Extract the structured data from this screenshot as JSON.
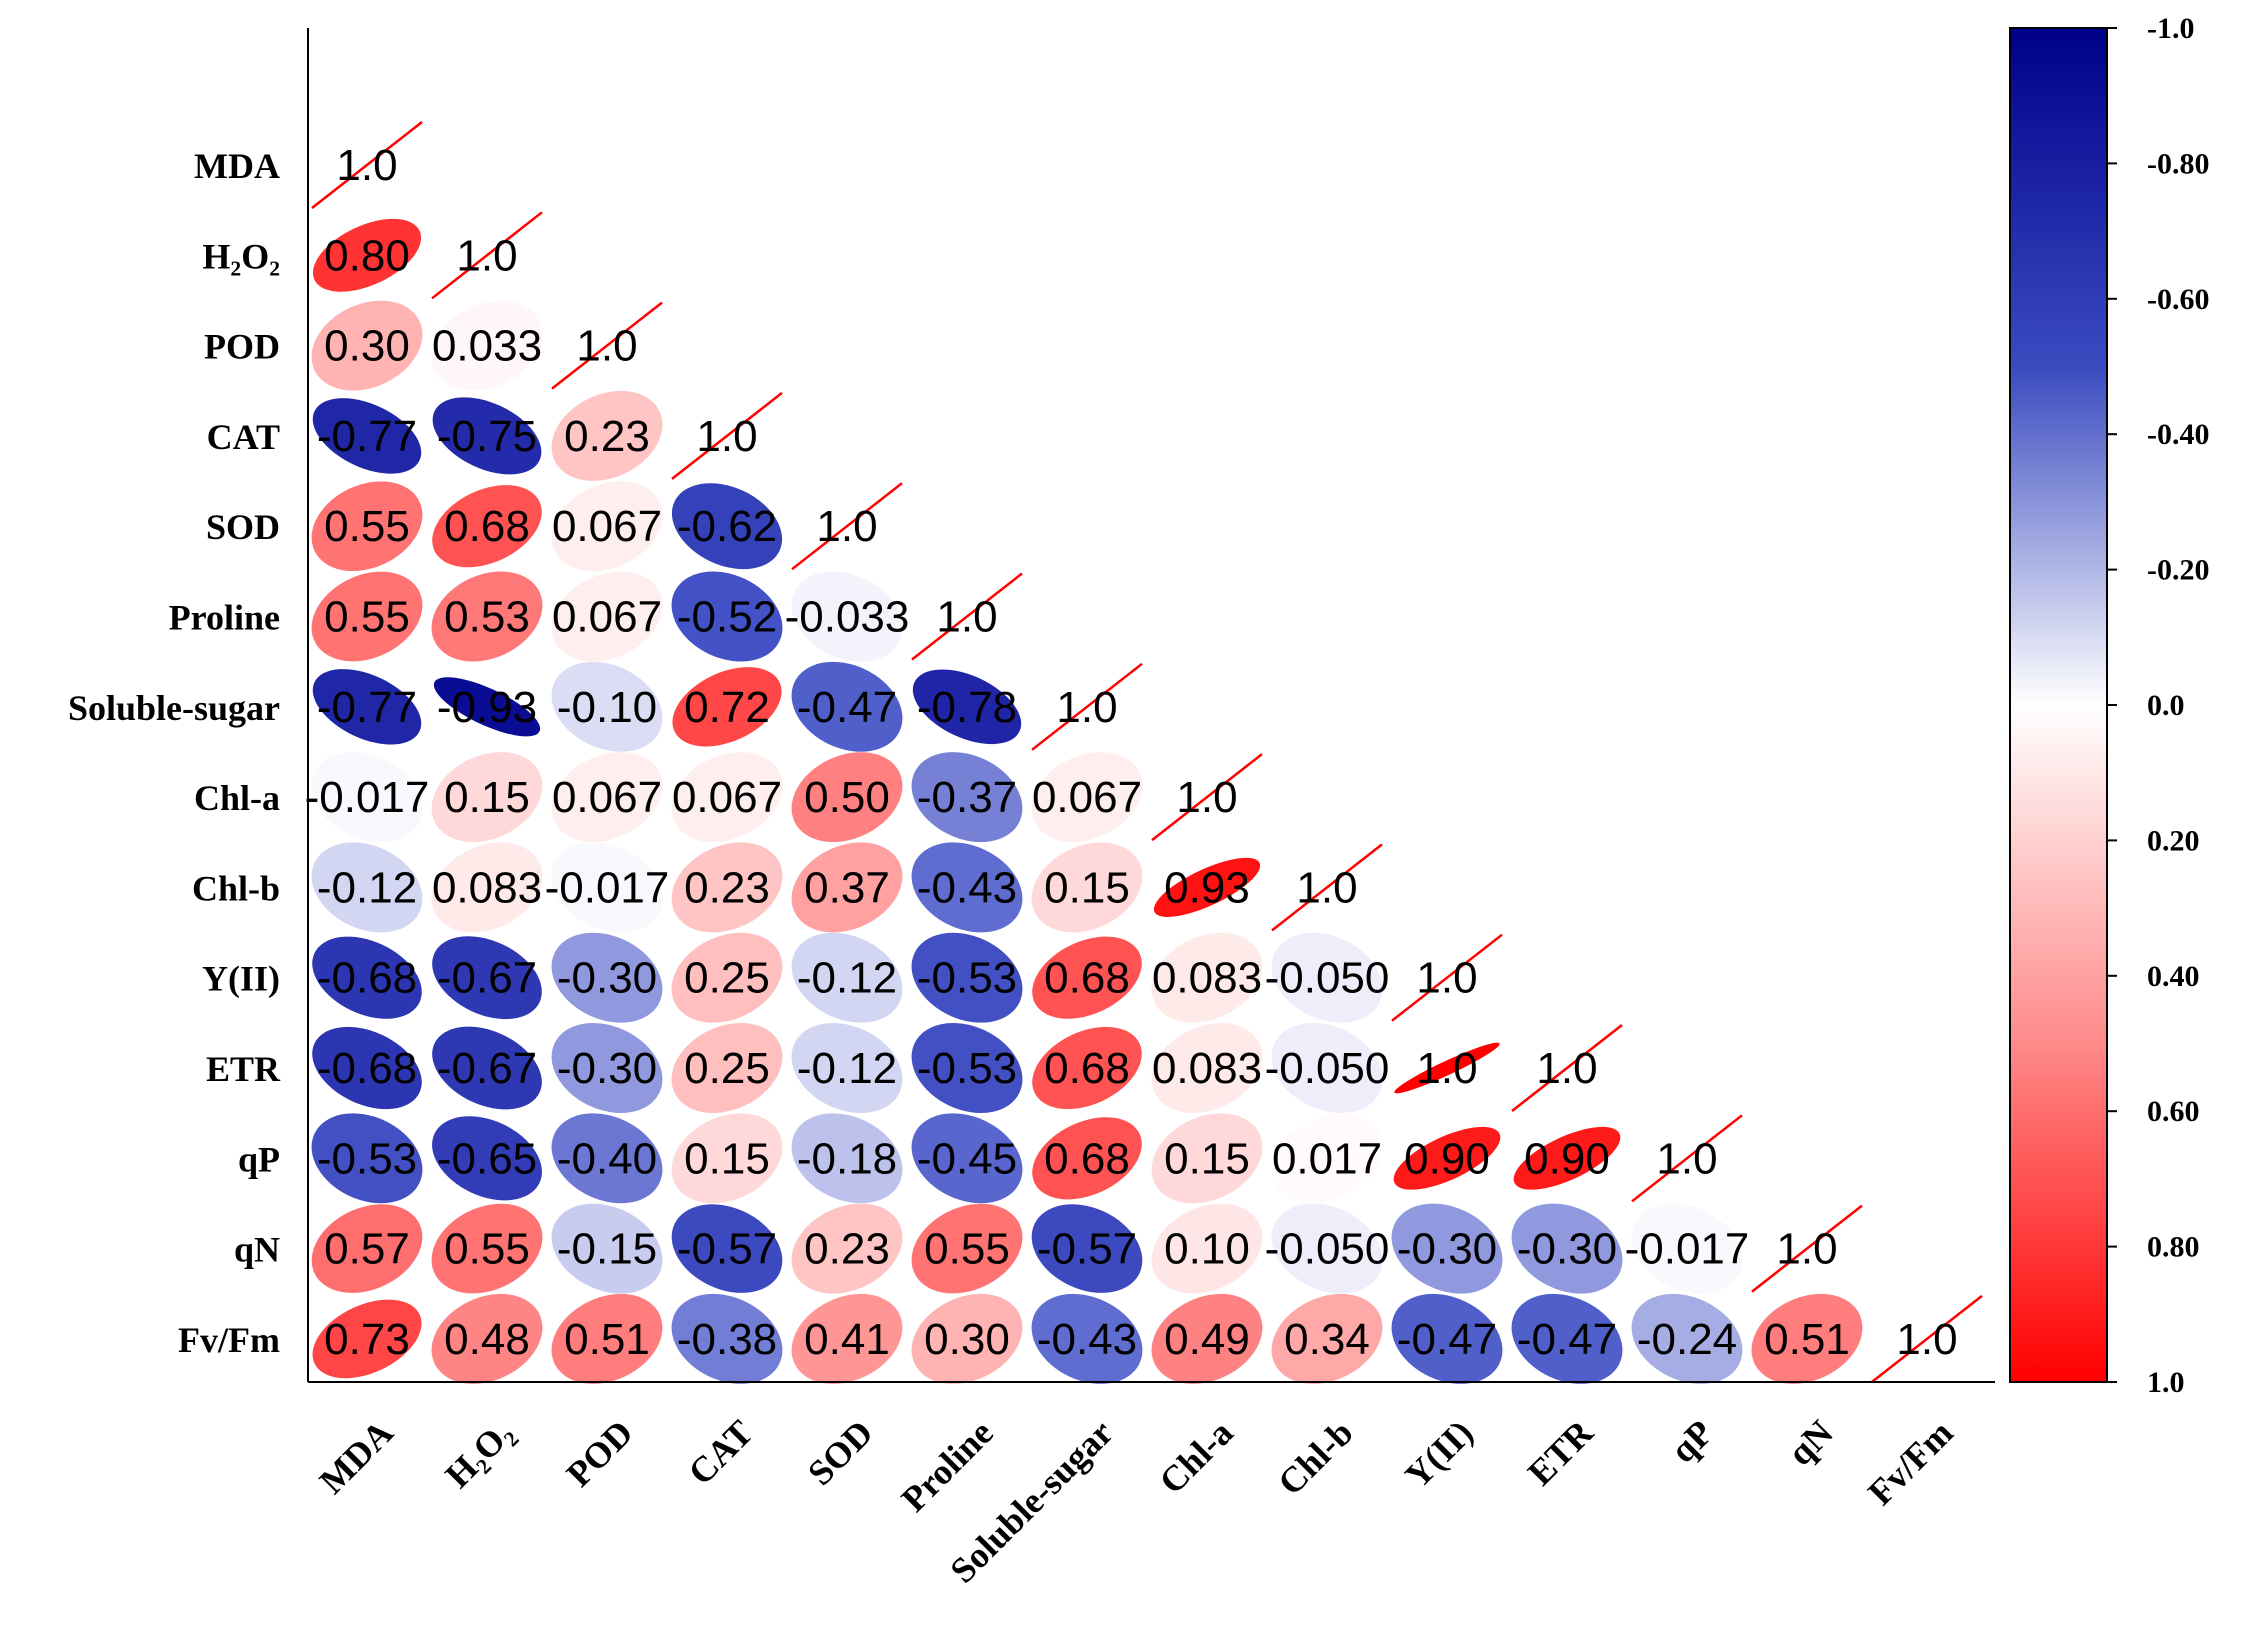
{
  "chart_data": {
    "type": "heatmap",
    "variables": [
      "MDA",
      "H₂O₂",
      "POD",
      "CAT",
      "SOD",
      "Proline",
      "Soluble-sugar",
      "Chl-a",
      "Chl-b",
      "Y(II)",
      "ETR",
      "qP",
      "qN",
      "Fv/Fm"
    ],
    "matrix_lower": [
      [
        "1.0"
      ],
      [
        "0.80",
        "1.0"
      ],
      [
        "0.30",
        "0.033",
        "1.0"
      ],
      [
        "-0.77",
        "-0.75",
        "0.23",
        "1.0"
      ],
      [
        "0.55",
        "0.68",
        "0.067",
        "-0.62",
        "1.0"
      ],
      [
        "0.55",
        "0.53",
        "0.067",
        "-0.52",
        "-0.033",
        "1.0"
      ],
      [
        "-0.77",
        "-0.93",
        "-0.10",
        "0.72",
        "-0.47",
        "-0.78",
        "1.0"
      ],
      [
        "-0.017",
        "0.15",
        "0.067",
        "0.067",
        "0.50",
        "-0.37",
        "0.067",
        "1.0"
      ],
      [
        "-0.12",
        "0.083",
        "-0.017",
        "0.23",
        "0.37",
        "-0.43",
        "0.15",
        "0.93",
        "1.0"
      ],
      [
        "-0.68",
        "-0.67",
        "-0.30",
        "0.25",
        "-0.12",
        "-0.53",
        "0.68",
        "0.083",
        "-0.050",
        "1.0"
      ],
      [
        "-0.68",
        "-0.67",
        "-0.30",
        "0.25",
        "-0.12",
        "-0.53",
        "0.68",
        "0.083",
        "-0.050",
        "1.0",
        "1.0"
      ],
      [
        "-0.53",
        "-0.65",
        "-0.40",
        "0.15",
        "-0.18",
        "-0.45",
        "0.68",
        "0.15",
        "0.017",
        "0.90",
        "0.90",
        "1.0"
      ],
      [
        "0.57",
        "0.55",
        "-0.15",
        "-0.57",
        "0.23",
        "0.55",
        "-0.57",
        "0.10",
        "-0.050",
        "-0.30",
        "-0.30",
        "-0.017",
        "1.0"
      ],
      [
        "0.73",
        "0.48",
        "0.51",
        "-0.38",
        "0.41",
        "0.30",
        "-0.43",
        "0.49",
        "0.34",
        "-0.47",
        "-0.47",
        "-0.24",
        "0.51",
        "1.0"
      ]
    ],
    "colorbar": {
      "range": [
        -1.0,
        1.0
      ],
      "ticks": [
        "-1.0",
        "-0.80",
        "-0.60",
        "-0.40",
        "-0.20",
        "0.0",
        "0.20",
        "0.40",
        "0.60",
        "0.80",
        "1.0"
      ],
      "colors": {
        "negative": "#00008B",
        "zero": "#ffffff",
        "positive": "#ff0000"
      }
    },
    "diagonal_mark_color": "#ff0000",
    "legend_placement": "right"
  }
}
